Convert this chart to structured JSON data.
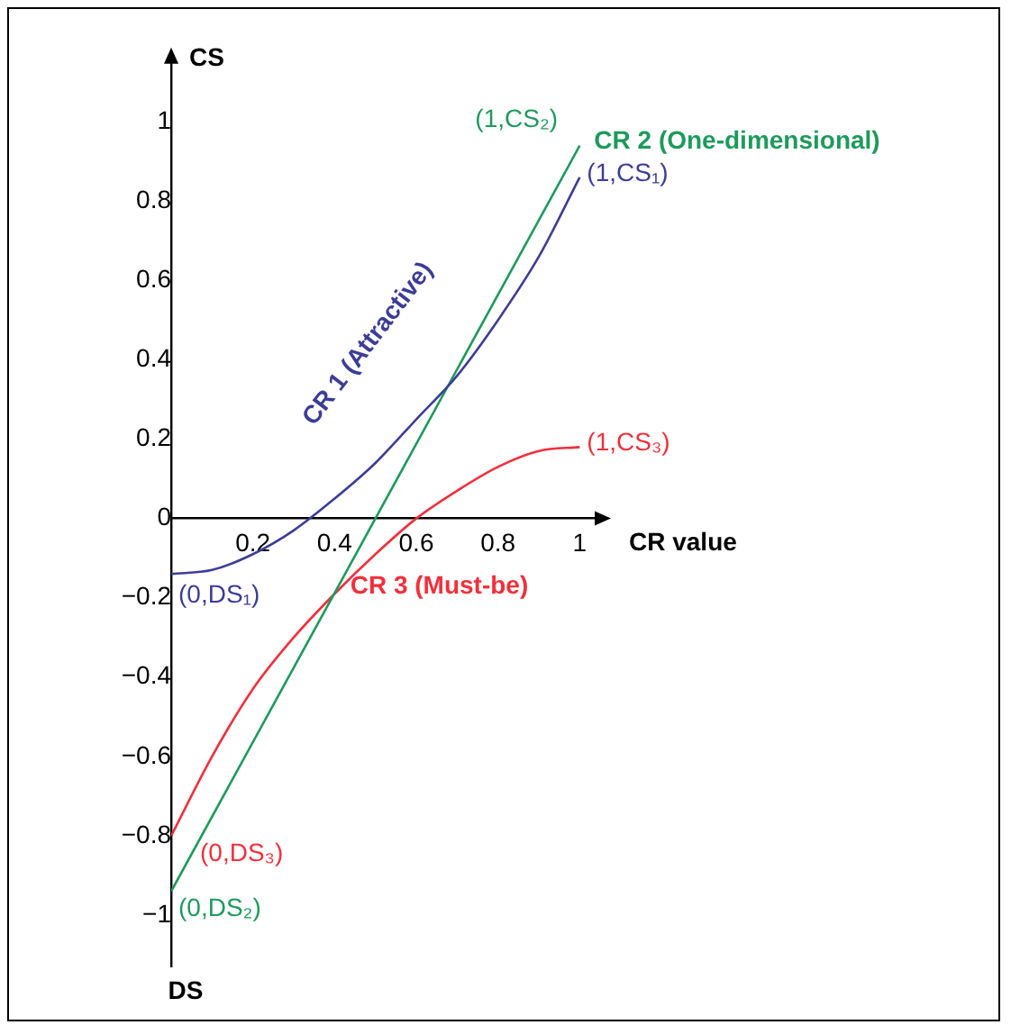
{
  "chart_data": {
    "type": "line",
    "xlabel": "CR value",
    "ylabel": "CS",
    "xlim": [
      0,
      1.05
    ],
    "ylim": [
      -1.13,
      1.16
    ],
    "xticks": [
      0.2,
      0.4,
      0.6,
      0.8,
      1
    ],
    "yticks": [
      {
        "value": -1,
        "label": "−1"
      },
      {
        "value": -0.8,
        "label": "−0.8"
      },
      {
        "value": -0.6,
        "label": "−0.6"
      },
      {
        "value": -0.4,
        "label": "−0.4"
      },
      {
        "value": -0.2,
        "label": "−0.2"
      },
      0,
      0.2,
      0.4,
      0.6,
      0.8,
      1
    ],
    "grid": false,
    "legend": false,
    "marker": "none",
    "line_style": "solid",
    "series": [
      {
        "name": "CR 1 (Attractive)",
        "color": "#3d3d96",
        "x": [
          0,
          0.1,
          0.2,
          0.3,
          0.4,
          0.5,
          0.6,
          0.7,
          0.8,
          0.9,
          1
        ],
        "values": [
          -0.14,
          -0.13,
          -0.09,
          -0.03,
          0.05,
          0.14,
          0.25,
          0.36,
          0.5,
          0.66,
          0.86
        ]
      },
      {
        "name": "CR 2 (One-dimensional)",
        "color": "#1e9a5c",
        "x": [
          0,
          1
        ],
        "values": [
          -0.94,
          0.94
        ]
      },
      {
        "name": "CR 3 (Must-be)",
        "color": "#f0303c",
        "x": [
          0,
          0.1,
          0.2,
          0.3,
          0.4,
          0.5,
          0.6,
          0.7,
          0.8,
          0.9,
          1
        ],
        "values": [
          -0.8,
          -0.6,
          -0.43,
          -0.3,
          -0.19,
          -0.09,
          0,
          0.07,
          0.13,
          0.17,
          0.18
        ]
      }
    ],
    "annotations": [
      "(1,CS₁)",
      "(1,CS₂)",
      "(1,CS₃)",
      "(0,DS₁)",
      "(0,DS₂)",
      "(0,DS₃)",
      "DS"
    ]
  }
}
